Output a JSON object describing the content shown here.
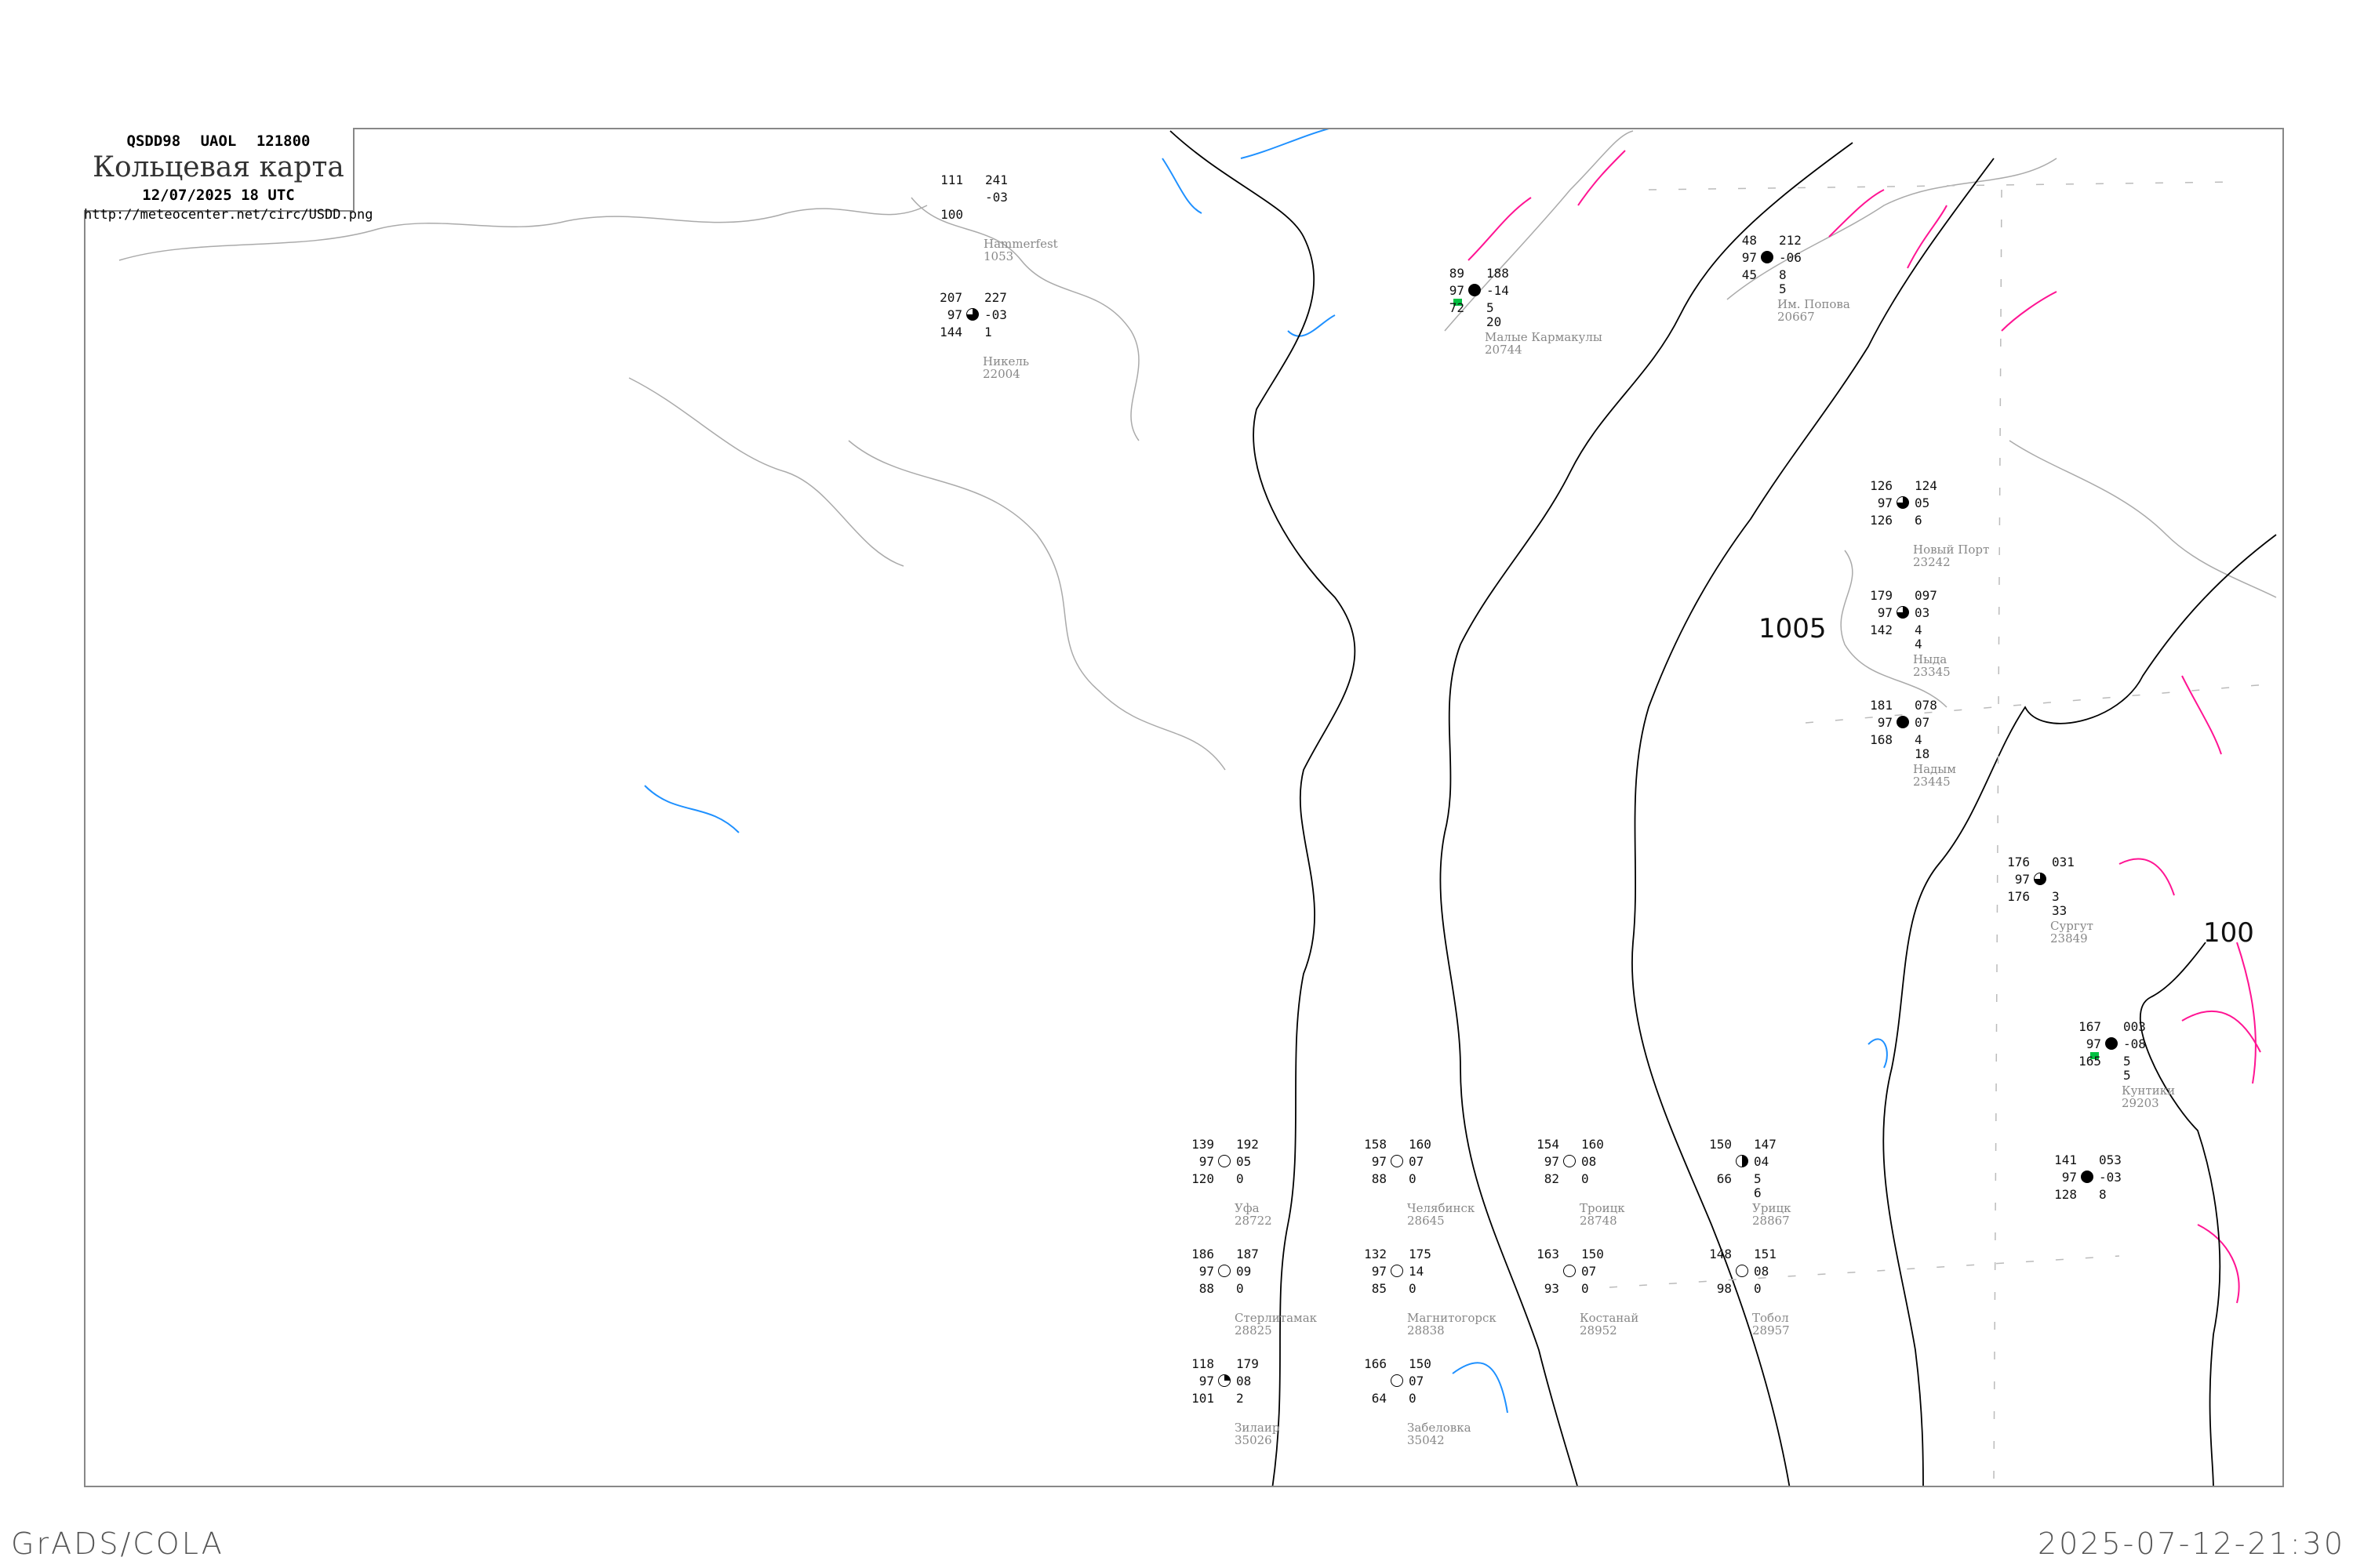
{
  "header": {
    "code_line": "QSDD98 UAOL 121800",
    "title": "Кольцевая карта",
    "datetime": "12/07/2025 18 UTC",
    "url": "http://meteocenter.net/circ/USDD.png"
  },
  "footer": {
    "left": "GrADS/COLA",
    "right": "2025-07-12-21:30"
  },
  "colors": {
    "isobar": "#000000",
    "coastline": "#aaaaaa",
    "warm_isotherm": "#ff1493",
    "rivers": "#1e90ff",
    "station_name": "#888888",
    "precip_marker": "#00c040"
  },
  "isobar_labels": [
    "1005",
    "100"
  ],
  "stations": [
    {
      "name": "Малые Кармакулы",
      "index": "20744",
      "temp": "89",
      "pressure": "188",
      "vis": "97",
      "tendency": "-14",
      "dew": "72",
      "weather": "5",
      "cloud": "20",
      "cover": "full",
      "precip": true
    },
    {
      "name": "Им. Попова",
      "index": "20667",
      "temp": "48",
      "pressure": "212",
      "vis": "97",
      "tendency": "-06",
      "dew": "45",
      "weather": "8",
      "cloud": "5",
      "cover": "full"
    },
    {
      "name": "Никель",
      "index": "22004",
      "temp": "207",
      "pressure": "227",
      "vis": "97",
      "tendency": "-03",
      "dew": "144",
      "weather": "1",
      "cover": "tq"
    },
    {
      "name": "Hammerfest",
      "index": "1053",
      "temp": "111",
      "pressure": "241",
      "vis": "",
      "tendency": "-03",
      "dew": "100",
      "weather": "",
      "cover": "none"
    },
    {
      "name": "Новый Порт",
      "index": "23242",
      "temp": "126",
      "pressure": "124",
      "vis": "97",
      "tendency": "05",
      "dew": "126",
      "weather": "6",
      "cover": "tq"
    },
    {
      "name": "Ныда",
      "index": "23345",
      "temp": "179",
      "pressure": "097",
      "vis": "97",
      "tendency": "03",
      "dew": "142",
      "weather": "4",
      "cloud": "4",
      "cover": "tq"
    },
    {
      "name": "Надым",
      "index": "23445",
      "temp": "181",
      "pressure": "078",
      "vis": "97",
      "tendency": "07",
      "dew": "168",
      "weather": "4",
      "cloud": "18",
      "cover": "full"
    },
    {
      "name": "Сургут",
      "index": "23849",
      "temp": "176",
      "pressure": "031",
      "vis": "97",
      "tendency": "",
      "dew": "176",
      "weather": "3",
      "cloud": "33",
      "cover": "tq"
    },
    {
      "name": "Кунтики",
      "index": "29203",
      "temp": "167",
      "pressure": "003",
      "vis": "97",
      "tendency": "-08",
      "dew": "165",
      "weather": "5",
      "cloud": "5",
      "cover": "full",
      "precip": true
    },
    {
      "name": "",
      "index": "",
      "temp": "141",
      "pressure": "053",
      "vis": "97",
      "tendency": "-03",
      "dew": "128",
      "weather": "8",
      "cover": "full"
    },
    {
      "name": "Уфа",
      "index": "28722",
      "temp": "139",
      "pressure": "192",
      "vis": "97",
      "tendency": "05",
      "dew": "120",
      "weather": "0",
      "cover": "empty"
    },
    {
      "name": "Стерлитамак",
      "index": "28825",
      "temp": "186",
      "pressure": "187",
      "vis": "97",
      "tendency": "09",
      "dew": "88",
      "weather": "0",
      "cover": "empty"
    },
    {
      "name": "Челябинск",
      "index": "28645",
      "temp": "158",
      "pressure": "160",
      "vis": "97",
      "tendency": "07",
      "dew": "88",
      "weather": "0",
      "cover": "empty"
    },
    {
      "name": "Троицк",
      "index": "28748",
      "temp": "154",
      "pressure": "160",
      "vis": "97",
      "tendency": "08",
      "dew": "82",
      "weather": "0",
      "cover": "empty"
    },
    {
      "name": "Магнитогорск",
      "index": "28838",
      "temp": "132",
      "pressure": "175",
      "vis": "97",
      "tendency": "14",
      "dew": "85",
      "weather": "0",
      "cover": "empty"
    },
    {
      "name": "Зилаир",
      "index": "35026",
      "temp": "118",
      "pressure": "179",
      "vis": "97",
      "tendency": "08",
      "dew": "101",
      "weather": "2",
      "cover": "q"
    },
    {
      "name": "Забеловка",
      "index": "35042",
      "temp": "166",
      "pressure": "150",
      "vis": "",
      "tendency": "07",
      "dew": "64",
      "weather": "0",
      "cover": "empty"
    },
    {
      "name": "Тобол",
      "index": "28957",
      "temp": "148",
      "pressure": "151",
      "vis": "",
      "tendency": "08",
      "dew": "98",
      "weather": "0",
      "cover": "empty"
    },
    {
      "name": "Костанай",
      "index": "28952",
      "temp": "163",
      "pressure": "150",
      "vis": "",
      "tendency": "07",
      "dew": "93",
      "weather": "0",
      "cover": "empty"
    },
    {
      "name": "Урицк",
      "index": "28867",
      "temp": "150",
      "pressure": "147",
      "vis": "",
      "tendency": "04",
      "dew": "66",
      "weather": "5",
      "cloud": "6",
      "cover": "half"
    }
  ]
}
